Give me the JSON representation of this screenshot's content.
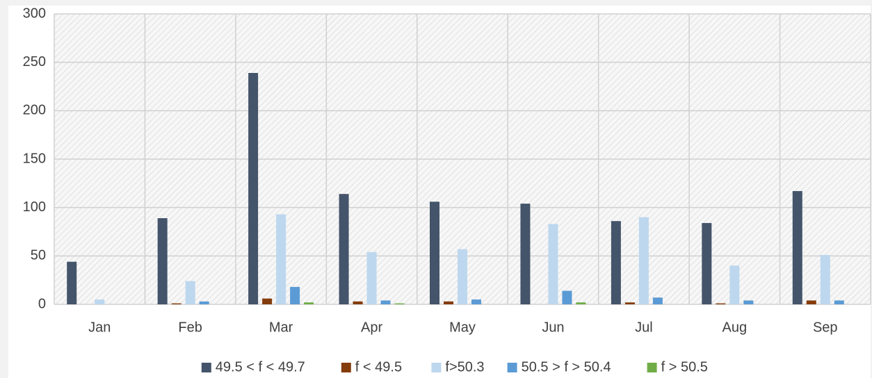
{
  "chart_data": {
    "type": "bar",
    "categories": [
      "Jan",
      "Feb",
      "Mar",
      "Apr",
      "May",
      "Jun",
      "Jul",
      "Aug",
      "Sep"
    ],
    "series": [
      {
        "name": "49.5 < f < 49.7",
        "color": "#44546a",
        "values": [
          44,
          89,
          239,
          114,
          106,
          104,
          86,
          84,
          117
        ]
      },
      {
        "name": "f < 49.5",
        "color": "#843c0c",
        "values": [
          0,
          1,
          6,
          3,
          3,
          0,
          2,
          1,
          4
        ]
      },
      {
        "name": "f>50.3",
        "color": "#bdd7ee",
        "values": [
          5,
          24,
          93,
          54,
          57,
          83,
          90,
          40,
          51
        ]
      },
      {
        "name": "50.5 > f > 50.4",
        "color": "#5b9bd5",
        "values": [
          0,
          3,
          18,
          4,
          5,
          14,
          7,
          4,
          4
        ]
      },
      {
        "name": "f > 50.5",
        "color": "#70ad47",
        "values": [
          0,
          0,
          2,
          1,
          0,
          2,
          0,
          0,
          0
        ]
      }
    ],
    "ylim": [
      0,
      300
    ],
    "yticks": [
      0,
      50,
      100,
      150,
      200,
      250,
      300
    ],
    "grid": true,
    "legend": "bottom"
  }
}
